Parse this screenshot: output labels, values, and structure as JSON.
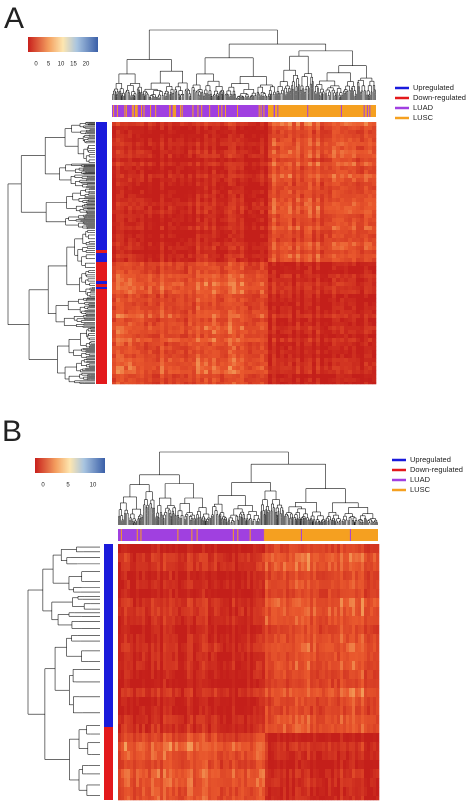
{
  "panels": [
    {
      "label": "A",
      "color_key": {
        "ticks": [
          0,
          5,
          10,
          15,
          20
        ]
      },
      "legend": [
        {
          "name": "Upregulated",
          "color": "#1a1adb"
        },
        {
          "name": "Down-regulated",
          "color": "#e3191c"
        },
        {
          "name": "LUAD",
          "color": "#a040e0"
        },
        {
          "name": "LUSC",
          "color": "#f5a020"
        }
      ]
    },
    {
      "label": "B",
      "color_key": {
        "ticks": [
          0,
          5,
          10
        ]
      },
      "legend": [
        {
          "name": "Upregulated",
          "color": "#1a1adb"
        },
        {
          "name": "Down-regulated",
          "color": "#e3191c"
        },
        {
          "name": "LUAD",
          "color": "#a040e0"
        },
        {
          "name": "LUSC",
          "color": "#f5a020"
        }
      ]
    }
  ]
}
